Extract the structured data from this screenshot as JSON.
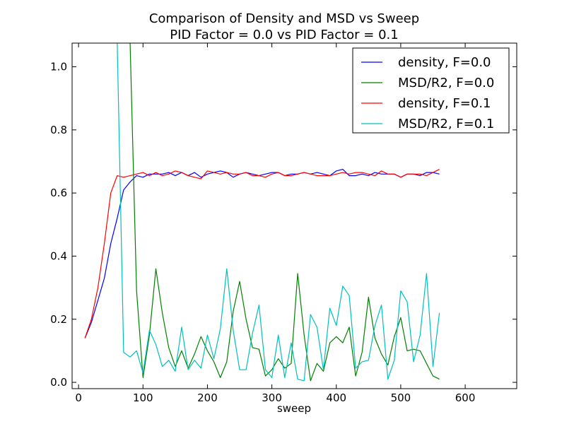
{
  "chart_data": {
    "type": "line",
    "title": "Comparison of Density and MSD vs Sweep",
    "subtitle": "PID Factor = 0.0 vs PID Factor = 0.1",
    "xlabel": "sweep",
    "ylabel": "",
    "xlim": [
      -10,
      680
    ],
    "ylim": [
      -0.02,
      1.075
    ],
    "xticks": [
      "0",
      "100",
      "200",
      "300",
      "400",
      "500",
      "600"
    ],
    "yticks": [
      "0.0",
      "0.2",
      "0.4",
      "0.6",
      "0.8",
      "1.0"
    ],
    "grid": false,
    "legend_position": "top-right",
    "x": [
      10,
      20,
      30,
      40,
      50,
      60,
      70,
      80,
      90,
      100,
      110,
      120,
      130,
      140,
      150,
      160,
      170,
      180,
      190,
      200,
      210,
      220,
      230,
      240,
      250,
      260,
      270,
      280,
      290,
      300,
      310,
      320,
      330,
      340,
      350,
      360,
      370,
      380,
      390,
      400,
      410,
      420,
      430,
      440,
      450,
      460,
      470,
      480,
      490,
      500,
      510,
      520,
      530,
      540,
      550,
      560
    ],
    "series": [
      {
        "name": "density, F=0.0",
        "color": "#0000ff",
        "values": [
          0.14,
          0.19,
          0.26,
          0.33,
          0.44,
          0.52,
          0.61,
          0.635,
          0.655,
          0.65,
          0.66,
          0.66,
          0.66,
          0.665,
          0.655,
          0.665,
          0.655,
          0.665,
          0.65,
          0.66,
          0.665,
          0.67,
          0.665,
          0.65,
          0.66,
          0.665,
          0.66,
          0.655,
          0.66,
          0.665,
          0.665,
          0.655,
          0.66,
          0.66,
          0.665,
          0.66,
          0.665,
          0.66,
          0.655,
          0.67,
          0.675,
          0.655,
          0.655,
          0.66,
          0.655,
          0.665,
          0.66,
          0.66,
          0.66,
          0.65,
          0.66,
          0.66,
          0.655,
          0.665,
          0.665,
          0.66
        ]
      },
      {
        "name": "MSD/R2, F=0.0",
        "color": "#008000",
        "values": [
          null,
          null,
          null,
          null,
          null,
          null,
          null,
          1.08,
          0.29,
          0.015,
          0.15,
          0.36,
          0.22,
          0.11,
          0.05,
          0.1,
          0.045,
          0.09,
          0.145,
          0.1,
          0.065,
          0.015,
          0.065,
          0.225,
          0.32,
          0.2,
          0.11,
          0.105,
          0.02,
          0.04,
          0.075,
          0.045,
          0.06,
          0.345,
          0.15,
          0.005,
          0.06,
          0.035,
          0.125,
          0.145,
          0.125,
          0.175,
          0.02,
          0.095,
          0.27,
          0.14,
          0.09,
          0.055,
          0.145,
          0.205,
          0.1,
          0.105,
          0.1,
          0.06,
          0.02,
          0.01
        ]
      },
      {
        "name": "density, F=0.1",
        "color": "#ff0000",
        "values": [
          0.14,
          0.2,
          0.3,
          0.44,
          0.6,
          0.655,
          0.65,
          0.655,
          0.66,
          0.665,
          0.655,
          0.665,
          0.655,
          0.66,
          0.67,
          0.665,
          0.655,
          0.65,
          0.645,
          0.67,
          0.665,
          0.66,
          0.665,
          0.66,
          0.66,
          0.665,
          0.655,
          0.655,
          0.65,
          0.66,
          0.665,
          0.655,
          0.655,
          0.66,
          0.665,
          0.66,
          0.655,
          0.655,
          0.655,
          0.66,
          0.665,
          0.66,
          0.665,
          0.665,
          0.66,
          0.655,
          0.67,
          0.66,
          0.66,
          0.65,
          0.66,
          0.66,
          0.66,
          0.655,
          0.665,
          0.675
        ]
      },
      {
        "name": "MSD/R2, F=0.1",
        "color": "#00bfbf",
        "values": [
          null,
          null,
          null,
          null,
          null,
          1.08,
          0.095,
          0.08,
          0.1,
          0.03,
          0.165,
          0.12,
          0.05,
          0.07,
          0.035,
          0.175,
          0.04,
          0.07,
          0.045,
          0.15,
          0.075,
          0.17,
          0.36,
          0.165,
          0.04,
          0.04,
          0.155,
          0.245,
          0.04,
          0.015,
          0.15,
          0.015,
          0.125,
          0.01,
          0.005,
          0.215,
          0.175,
          0.04,
          0.235,
          0.18,
          0.305,
          0.275,
          0.045,
          0.065,
          0.07,
          0.18,
          0.245,
          0.01,
          0.07,
          0.29,
          0.255,
          0.065,
          0.15,
          0.345,
          0.05,
          0.22
        ]
      }
    ]
  }
}
